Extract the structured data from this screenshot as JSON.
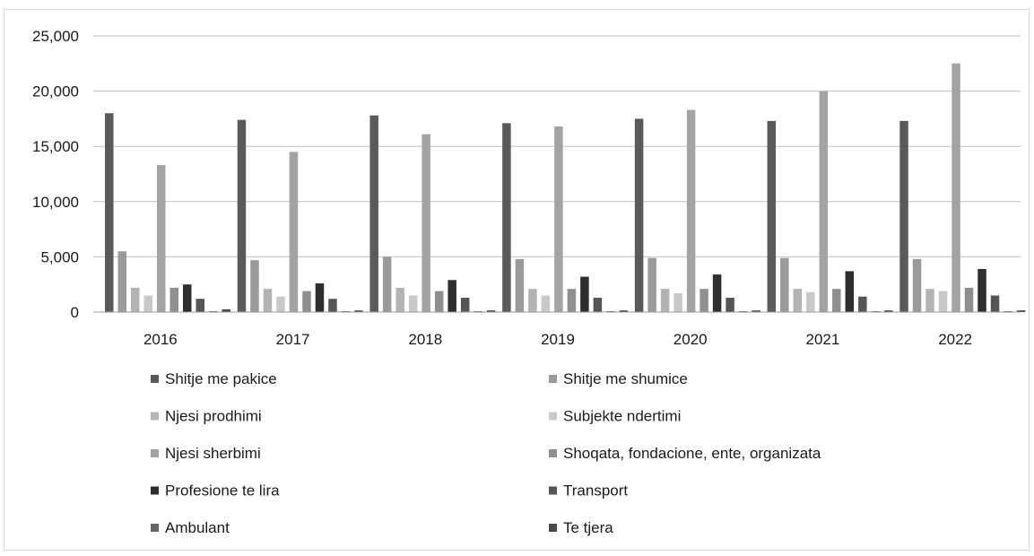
{
  "chart_data": {
    "type": "bar",
    "title": "",
    "xlabel": "",
    "ylabel": "",
    "ylim": [
      0,
      25000
    ],
    "yticks": [
      0,
      5000,
      10000,
      15000,
      20000,
      25000
    ],
    "ytick_labels": [
      "0",
      "5,000",
      "10,000",
      "15,000",
      "20,000",
      "25,000"
    ],
    "grid": true,
    "legend_position": "bottom",
    "categories": [
      "2016",
      "2017",
      "2018",
      "2019",
      "2020",
      "2021",
      "2022"
    ],
    "series": [
      {
        "name": "Shitje me pakice",
        "color": "#5a5a5a",
        "values": [
          18000,
          17400,
          17800,
          17100,
          17500,
          17300,
          17300
        ]
      },
      {
        "name": "Shitje me shumice",
        "color": "#9a9a9a",
        "values": [
          5500,
          4700,
          5000,
          4800,
          4900,
          4900,
          4800
        ]
      },
      {
        "name": "Njesi prodhimi",
        "color": "#b3b3b3",
        "values": [
          2200,
          2100,
          2200,
          2100,
          2100,
          2100,
          2100
        ]
      },
      {
        "name": "Subjekte ndertimi",
        "color": "#c8c8c8",
        "values": [
          1500,
          1400,
          1500,
          1500,
          1700,
          1800,
          1900
        ]
      },
      {
        "name": "Njesi sherbimi",
        "color": "#a3a3a3",
        "values": [
          13300,
          14500,
          16100,
          16800,
          18300,
          20000,
          22500
        ]
      },
      {
        "name": "Shoqata, fondacione, ente, organizata",
        "color": "#8f8f8f",
        "values": [
          2200,
          1900,
          1900,
          2100,
          2100,
          2100,
          2200
        ]
      },
      {
        "name": "Profesione te lira",
        "color": "#2e2e2e",
        "values": [
          2500,
          2600,
          2900,
          3200,
          3400,
          3700,
          3900
        ]
      },
      {
        "name": "Transport",
        "color": "#555555",
        "values": [
          1200,
          1200,
          1300,
          1300,
          1300,
          1400,
          1500
        ]
      },
      {
        "name": "Ambulant",
        "color": "#666666",
        "values": [
          50,
          50,
          50,
          50,
          50,
          50,
          50
        ]
      },
      {
        "name": "Te tjera",
        "color": "#4a4a4a",
        "values": [
          250,
          150,
          150,
          150,
          150,
          150,
          150
        ]
      }
    ]
  }
}
